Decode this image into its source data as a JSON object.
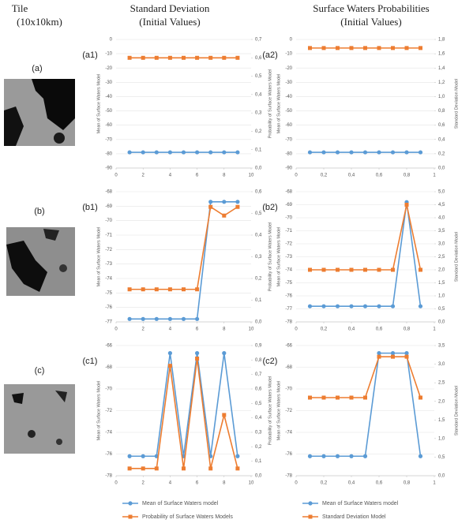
{
  "columns": [
    {
      "title": "Tile",
      "subtitle": "(10x10km)"
    },
    {
      "title": "Standard Deviation",
      "subtitle": "(Initial Values)"
    },
    {
      "title": "Surface Waters Probabilities",
      "subtitle": "(Initial Values)"
    }
  ],
  "tiles": [
    "(a)",
    "(b)",
    "(c)"
  ],
  "chart_data": [
    {
      "type": "line",
      "panel": "(a1)",
      "ylabel": "Mean of Surface Waters Model",
      "y2label": "Probability of Surface Waters Model",
      "grid": true,
      "x": [
        1,
        2,
        3,
        4,
        5,
        6,
        7,
        8,
        9
      ],
      "xlim": [
        0,
        10
      ],
      "xticks": [
        0,
        2,
        4,
        6,
        8,
        10
      ],
      "ylim": [
        -90,
        0
      ],
      "yticks": [
        -90,
        -80,
        -70,
        -60,
        -50,
        -40,
        -30,
        -20,
        -10,
        0
      ],
      "y2lim": [
        0,
        0.7
      ],
      "y2ticks": [
        {
          "value": 0,
          "label": "0,0"
        },
        {
          "value": 0.1,
          "label": "0,1"
        },
        {
          "value": 0.2,
          "label": "0,2"
        },
        {
          "value": 0.3,
          "label": "0,3"
        },
        {
          "value": 0.4,
          "label": "0,4"
        },
        {
          "value": 0.5,
          "label": "0,5"
        },
        {
          "value": 0.6,
          "label": "0,6"
        },
        {
          "value": 0.7,
          "label": "0,7"
        }
      ],
      "series": [
        {
          "color": "#5b9bd5",
          "values": [
            -79,
            -79,
            -79,
            -79,
            -79,
            -79,
            -79,
            -79,
            -79
          ]
        },
        {
          "color": "#ed7d31",
          "axis": "y2",
          "values": [
            0.6,
            0.6,
            0.6,
            0.6,
            0.6,
            0.6,
            0.6,
            0.6,
            0.6
          ]
        }
      ]
    },
    {
      "type": "line",
      "panel": "(a2)",
      "ylabel": "Mean of Surface Waters Model",
      "y2label": "Standard Deviation Model",
      "grid": true,
      "x": [
        0.1,
        0.2,
        0.3,
        0.4,
        0.5,
        0.6,
        0.7,
        0.8,
        0.9
      ],
      "xlim": [
        0,
        1
      ],
      "xticks": [
        0,
        {
          "value": 0.2,
          "label": "0,2"
        },
        {
          "value": 0.4,
          "label": "0,4"
        },
        {
          "value": 0.6,
          "label": "0,6"
        },
        {
          "value": 0.8,
          "label": "0,8"
        },
        1
      ],
      "ylim": [
        -90,
        0
      ],
      "yticks": [
        -90,
        -80,
        -70,
        -60,
        -50,
        -40,
        -30,
        -20,
        -10,
        0
      ],
      "y2lim": [
        0,
        1.8
      ],
      "y2ticks": [
        {
          "value": 0,
          "label": "0,0"
        },
        {
          "value": 0.2,
          "label": "0,2"
        },
        {
          "value": 0.4,
          "label": "0,4"
        },
        {
          "value": 0.6,
          "label": "0,6"
        },
        {
          "value": 0.8,
          "label": "0,8"
        },
        {
          "value": 1,
          "label": "1,0"
        },
        {
          "value": 1.2,
          "label": "1,2"
        },
        {
          "value": 1.4,
          "label": "1,4"
        },
        {
          "value": 1.6,
          "label": "1,6"
        },
        {
          "value": 1.8,
          "label": "1,8"
        }
      ],
      "series": [
        {
          "color": "#5b9bd5",
          "values": [
            -79,
            -79,
            -79,
            -79,
            -79,
            -79,
            -79,
            -79,
            -79
          ]
        },
        {
          "color": "#ed7d31",
          "axis": "y2",
          "values": [
            1.68,
            1.68,
            1.68,
            1.68,
            1.68,
            1.68,
            1.68,
            1.68,
            1.68
          ]
        }
      ]
    },
    {
      "type": "line",
      "panel": "(b1)",
      "ylabel": "Mean of Surface Waters Model",
      "y2label": "Probability of Surface Waters Model",
      "grid": true,
      "x": [
        1,
        2,
        3,
        4,
        5,
        6,
        7,
        8,
        9
      ],
      "xlim": [
        0,
        10
      ],
      "xticks": [
        0,
        2,
        4,
        6,
        8,
        10
      ],
      "ylim": [
        -77,
        -68
      ],
      "yticks": [
        -77,
        -76,
        -75,
        -74,
        -73,
        -72,
        -71,
        -70,
        -69,
        -68
      ],
      "y2lim": [
        0,
        0.6
      ],
      "y2ticks": [
        {
          "value": 0,
          "label": "0,0"
        },
        {
          "value": 0.1,
          "label": "0,1"
        },
        {
          "value": 0.2,
          "label": "0,2"
        },
        {
          "value": 0.3,
          "label": "0,3"
        },
        {
          "value": 0.4,
          "label": "0,4"
        },
        {
          "value": 0.5,
          "label": "0,5"
        },
        {
          "value": 0.6,
          "label": "0,6"
        }
      ],
      "series": [
        {
          "color": "#5b9bd5",
          "values": [
            -76.8,
            -76.8,
            -76.8,
            -76.8,
            -76.8,
            -76.8,
            -68.7,
            -68.7,
            -68.7
          ]
        },
        {
          "color": "#ed7d31",
          "axis": "y2",
          "values": [
            0.15,
            0.15,
            0.15,
            0.15,
            0.15,
            0.15,
            0.53,
            0.49,
            0.53
          ]
        }
      ]
    },
    {
      "type": "line",
      "panel": "(b2)",
      "ylabel": "Mean of Surface Waters Model",
      "y2label": "Standard Deviation Model",
      "grid": true,
      "x": [
        0.1,
        0.2,
        0.3,
        0.4,
        0.5,
        0.6,
        0.7,
        0.8,
        0.9
      ],
      "xlim": [
        0,
        1
      ],
      "xticks": [
        0,
        {
          "value": 0.2,
          "label": "0,2"
        },
        {
          "value": 0.4,
          "label": "0,4"
        },
        {
          "value": 0.6,
          "label": "0,6"
        },
        {
          "value": 0.8,
          "label": "0,8"
        },
        1
      ],
      "ylim": [
        -78,
        -68
      ],
      "yticks": [
        -78,
        -77,
        -76,
        -75,
        -74,
        -73,
        -72,
        -71,
        -70,
        -69,
        -68
      ],
      "y2lim": [
        0,
        5
      ],
      "y2ticks": [
        {
          "value": 0,
          "label": "0,0"
        },
        {
          "value": 0.5,
          "label": "0,5"
        },
        {
          "value": 1,
          "label": "1,0"
        },
        {
          "value": 1.5,
          "label": "1,5"
        },
        {
          "value": 2,
          "label": "2,0"
        },
        {
          "value": 2.5,
          "label": "2,5"
        },
        {
          "value": 3,
          "label": "3,0"
        },
        {
          "value": 3.5,
          "label": "3,5"
        },
        {
          "value": 4,
          "label": "4,0"
        },
        {
          "value": 4.5,
          "label": "4,5"
        },
        {
          "value": 5,
          "label": "5,0"
        }
      ],
      "series": [
        {
          "color": "#5b9bd5",
          "values": [
            -76.8,
            -76.8,
            -76.8,
            -76.8,
            -76.8,
            -76.8,
            -76.8,
            -68.8,
            -76.8
          ]
        },
        {
          "color": "#ed7d31",
          "axis": "y2",
          "values": [
            2,
            2,
            2,
            2,
            2,
            2,
            2,
            4.5,
            2
          ]
        }
      ]
    },
    {
      "type": "line",
      "panel": "(c1)",
      "ylabel": "Mean of Surface Waters Model",
      "y2label": "Probability of Surface Waters Model",
      "grid": true,
      "legend": true,
      "x": [
        1,
        2,
        3,
        4,
        5,
        6,
        7,
        8,
        9
      ],
      "xlim": [
        0,
        10
      ],
      "xticks": [
        0,
        2,
        4,
        6,
        8,
        10
      ],
      "ylim": [
        -78,
        -66
      ],
      "yticks": [
        -78,
        -76,
        -74,
        -72,
        -70,
        -68,
        -66
      ],
      "y2lim": [
        0,
        0.9
      ],
      "y2ticks": [
        {
          "value": 0,
          "label": "0,0"
        },
        {
          "value": 0.1,
          "label": "0,1"
        },
        {
          "value": 0.2,
          "label": "0,2"
        },
        {
          "value": 0.3,
          "label": "0,3"
        },
        {
          "value": 0.4,
          "label": "0,4"
        },
        {
          "value": 0.5,
          "label": "0,5"
        },
        {
          "value": 0.6,
          "label": "0,6"
        },
        {
          "value": 0.7,
          "label": "0,7"
        },
        {
          "value": 0.8,
          "label": "0,8"
        },
        {
          "value": 0.9,
          "label": "0,9"
        }
      ],
      "series": [
        {
          "name": "Mean of Surface Waters model",
          "color": "#5b9bd5",
          "values": [
            -76.2,
            -76.2,
            -76.2,
            -66.7,
            -76.2,
            -66.7,
            -76.2,
            -66.7,
            -76.2
          ]
        },
        {
          "name": "Probability of Surface Waters Models",
          "color": "#ed7d31",
          "axis": "y2",
          "values": [
            0.05,
            0.05,
            0.05,
            0.76,
            0.05,
            0.81,
            0.05,
            0.42,
            0.05
          ]
        }
      ]
    },
    {
      "type": "line",
      "panel": "(c2)",
      "ylabel": "Mean of Surface Waters Model",
      "y2label": "Standard Deviation Model",
      "grid": true,
      "legend": true,
      "x": [
        0.1,
        0.2,
        0.3,
        0.4,
        0.5,
        0.6,
        0.7,
        0.8,
        0.9
      ],
      "xlim": [
        0,
        1
      ],
      "xticks": [
        0,
        {
          "value": 0.2,
          "label": "0,2"
        },
        {
          "value": 0.4,
          "label": "0,4"
        },
        {
          "value": 0.6,
          "label": "0,6"
        },
        {
          "value": 0.8,
          "label": "0,8"
        },
        1
      ],
      "ylim": [
        -78,
        -66
      ],
      "yticks": [
        -78,
        -76,
        -74,
        -72,
        -70,
        -68,
        -66
      ],
      "y2lim": [
        0,
        3.5
      ],
      "y2ticks": [
        {
          "value": 0,
          "label": "0,0"
        },
        {
          "value": 0.5,
          "label": "0,5"
        },
        {
          "value": 1,
          "label": "1,0"
        },
        {
          "value": 1.5,
          "label": "1,5"
        },
        {
          "value": 2,
          "label": "2,0"
        },
        {
          "value": 2.5,
          "label": "2,5"
        },
        {
          "value": 3,
          "label": "3,0"
        },
        {
          "value": 3.5,
          "label": "3,5"
        }
      ],
      "series": [
        {
          "name": "Mean of Surface Waters model",
          "color": "#5b9bd5",
          "values": [
            -76.2,
            -76.2,
            -76.2,
            -76.2,
            -76.2,
            -66.7,
            -66.7,
            -66.7,
            -76.2
          ]
        },
        {
          "name": "Standard Deviation Model",
          "color": "#ed7d31",
          "axis": "y2",
          "values": [
            2.1,
            2.1,
            2.1,
            2.1,
            2.1,
            3.2,
            3.2,
            3.2,
            2.1
          ]
        }
      ]
    }
  ]
}
